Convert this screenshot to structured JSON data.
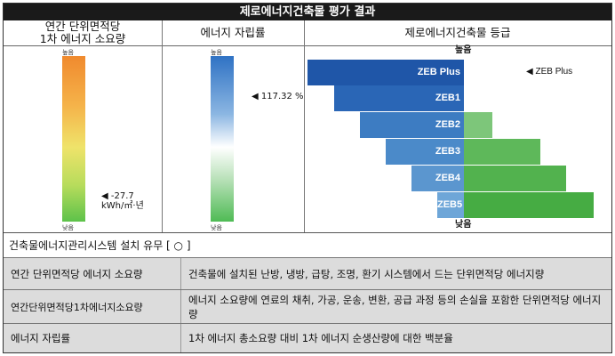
{
  "title": "제로에너지건축물 평가 결과",
  "columns": {
    "col1": "연간 단위면적당\n1차 에너지 소요량",
    "col2": "에너지 자립률",
    "col3": "제로에너지건축물 등급"
  },
  "col1": {
    "top_label": "높음",
    "bottom_label": "낮음",
    "marker_value": "◀ -27.7",
    "marker_unit": "kWh/㎡·년"
  },
  "col2": {
    "top_label": "높음",
    "bottom_label": "낮음",
    "marker_value": "◀ 117.32 %"
  },
  "col3": {
    "top_label": "높음",
    "bottom_label": "낮음",
    "grades": [
      "ZEB Plus",
      "ZEB1",
      "ZEB2",
      "ZEB3",
      "ZEB4",
      "ZEB5"
    ],
    "marker": "◀ ZEB Plus"
  },
  "bems_row": "건축물에너지관리시스템 설치 유무 [ ○ ]",
  "definitions": [
    {
      "term": "연간 단위면적당 에너지 소요량",
      "desc": "건축물에 설치된 난방, 냉방, 급탕, 조명, 환기 시스템에서 드는 단위면적당 에너지량"
    },
    {
      "term": "연간단위면적당1차에너지소요량",
      "desc": "에너지 소요량에 연료의 채취, 가공, 운송, 변환, 공급 과정 등의 손실을 포함한 단위면적당 에너지량"
    },
    {
      "term": "에너지 자립률",
      "desc": "1차 에너지 총소요량 대비 1차 에너지 순생산량에 대한 백분율"
    }
  ],
  "colors": {
    "zeb_plus": "#1f56a8",
    "zeb_blue": "#5b96cf",
    "zeb_green": "#4caf50",
    "row_bg": "#dcdcdc"
  }
}
